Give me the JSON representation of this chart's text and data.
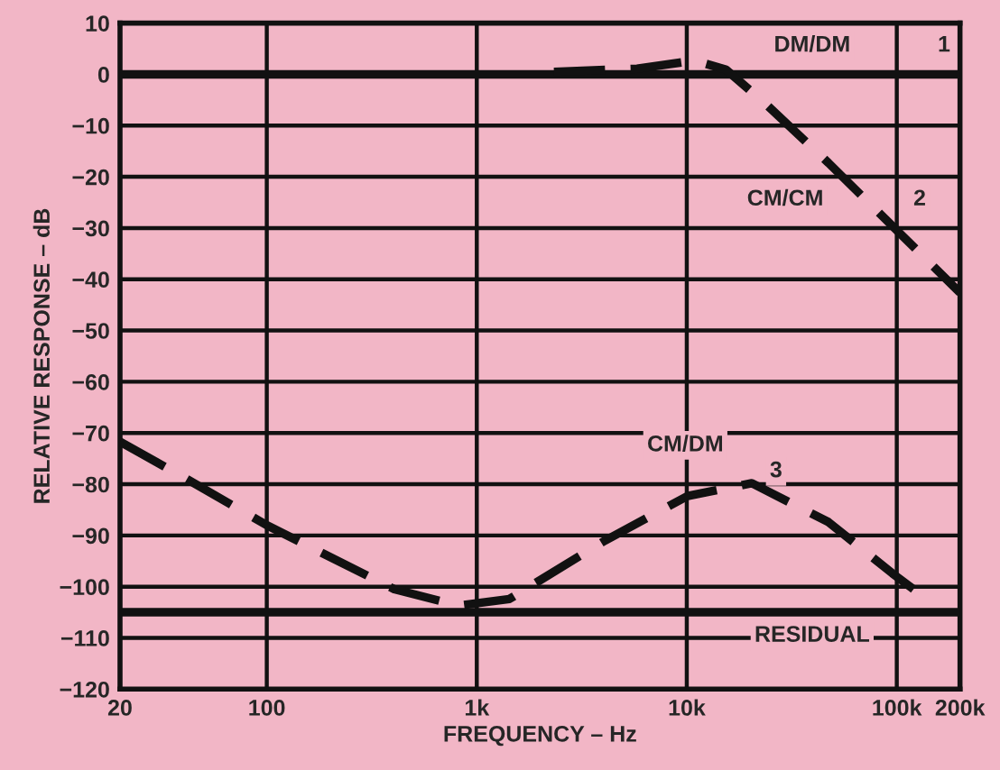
{
  "chart_data": {
    "type": "line",
    "xlabel": "FREQUENCY – Hz",
    "ylabel": "RELATIVE RESPONSE – dB",
    "log": "x",
    "xlim": [
      20,
      200000
    ],
    "xticks": [
      20,
      100,
      {
        "value": 1000,
        "label": "1k"
      },
      {
        "value": 10000,
        "label": "10k"
      },
      {
        "value": 100000,
        "label": "100k"
      },
      {
        "value": 200000,
        "label": "200k"
      }
    ],
    "ylim": [
      -120,
      10
    ],
    "yticks": [
      -120,
      -110,
      -100,
      -90,
      -80,
      -70,
      -60,
      -50,
      -40,
      -30,
      -20,
      -10,
      0,
      10
    ],
    "grid": true,
    "legend": false,
    "marker": "none",
    "series": [
      {
        "name": "DM/DM",
        "color": "#111111",
        "line_style": "solid",
        "x": [
          20,
          200000
        ],
        "values": [
          0,
          0
        ]
      },
      {
        "name": "CM/CM",
        "color": "#111111",
        "line_style": "dashed",
        "x": [
          2330,
          5800,
          10900,
          15400,
          23500,
          47300,
          95300,
          200000
        ],
        "values": [
          0.5,
          1.1,
          2.7,
          0.9,
          -5.6,
          -17.3,
          -29.6,
          -42.6
        ]
      },
      {
        "name": "CM/DM",
        "color": "#111111",
        "line_style": "dashed",
        "x": [
          20,
          40,
          100,
          405,
          817,
          1430,
          4080,
          10100,
          20400,
          47300,
          95300,
          145000
        ],
        "values": [
          -71.7,
          -78.6,
          -88,
          -100.5,
          -103.7,
          -102.4,
          -91,
          -82.3,
          -79.8,
          -87.4,
          -97.4,
          -103
        ]
      },
      {
        "name": "RESIDUAL",
        "color": "#111111",
        "line_style": "solid",
        "x": [
          20,
          200000
        ],
        "values": [
          -105,
          -105
        ]
      }
    ],
    "annotations": [
      "1",
      "2",
      "3"
    ]
  }
}
